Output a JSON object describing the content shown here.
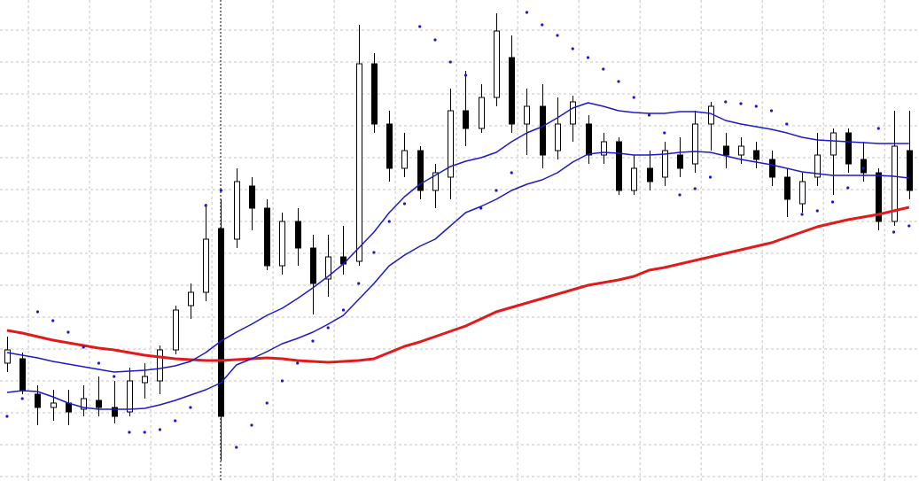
{
  "chart_data": {
    "type": "candlestick",
    "xlim": [
      -0.46,
      59.65
    ],
    "xticks": [
      1.4,
      5.4,
      9.4,
      13.4,
      17.4,
      21.4,
      25.4,
      29.4,
      33.4,
      37.4,
      41.4,
      45.4,
      49.4,
      53.4,
      57.4
    ],
    "ylim": [
      0,
      543
    ],
    "yticks": [
      5,
      41,
      77,
      113,
      149,
      185,
      221,
      257,
      293,
      329,
      365,
      401,
      437,
      473,
      509
    ],
    "grid": true,
    "grid_color": "#c4c4c4",
    "up_color": "#ffffff",
    "down_color": "#000000",
    "candles": {
      "open": [
        133,
        138,
        98,
        83,
        88,
        81,
        91,
        83,
        78,
        111,
        113,
        148,
        198,
        213,
        285,
        273,
        333,
        308,
        243,
        293,
        263,
        228,
        253,
        248,
        471,
        403,
        353,
        373,
        328,
        343,
        418,
        398,
        433,
        478,
        403,
        423,
        373,
        403,
        403,
        368,
        383,
        328,
        353,
        343,
        368,
        358,
        403,
        378,
        368,
        373,
        363,
        343,
        313,
        343,
        368,
        393,
        363,
        348,
        293,
        373
      ],
      "high": [
        163,
        145,
        108,
        103,
        103,
        108,
        118,
        113,
        128,
        133,
        153,
        198,
        223,
        313,
        318,
        353,
        343,
        318,
        303,
        308,
        278,
        278,
        288,
        515,
        483,
        418,
        393,
        378,
        358,
        443,
        463,
        448,
        528,
        503,
        443,
        448,
        433,
        435,
        413,
        393,
        388,
        368,
        373,
        383,
        388,
        418,
        428,
        393,
        388,
        383,
        373,
        353,
        348,
        393,
        398,
        398,
        383,
        353,
        418,
        418
      ],
      "low": [
        123,
        98,
        63,
        68,
        63,
        73,
        73,
        65,
        73,
        93,
        98,
        143,
        183,
        203,
        23,
        263,
        283,
        238,
        233,
        243,
        188,
        208,
        233,
        243,
        393,
        338,
        343,
        318,
        308,
        318,
        378,
        393,
        423,
        393,
        368,
        353,
        363,
        383,
        358,
        358,
        323,
        323,
        328,
        333,
        343,
        348,
        373,
        353,
        358,
        353,
        333,
        298,
        303,
        333,
        323,
        348,
        338,
        283,
        288,
        318
      ],
      "close": [
        148,
        103,
        83,
        88,
        78,
        93,
        83,
        73,
        113,
        118,
        148,
        193,
        213,
        273,
        73,
        338,
        308,
        243,
        293,
        263,
        223,
        253,
        245,
        471,
        403,
        353,
        373,
        328,
        348,
        418,
        398,
        433,
        508,
        403,
        423,
        368,
        403,
        428,
        368,
        383,
        328,
        353,
        338,
        373,
        353,
        403,
        423,
        368,
        378,
        363,
        343,
        318,
        338,
        368,
        393,
        358,
        348,
        293,
        378,
        328
      ]
    },
    "lines": [
      {
        "color": "#e31a1a",
        "values": [
          170,
          167,
          163,
          159,
          156,
          153,
          150,
          148,
          145,
          142,
          140,
          138,
          137,
          136,
          136,
          137,
          138,
          139,
          138,
          136,
          135,
          134,
          135,
          136,
          138,
          145,
          152,
          157,
          163,
          169,
          175,
          183,
          191,
          196,
          201,
          206,
          211,
          216,
          221,
          224,
          227,
          231,
          238,
          241,
          245,
          249,
          253,
          257,
          261,
          265,
          269,
          275,
          281,
          287,
          291,
          295,
          298,
          301,
          305,
          309
        ]
      },
      {
        "color": "#1a1acc",
        "values": [
          145,
          142,
          139,
          135,
          132,
          129,
          126,
          123,
          124,
          125,
          127,
          130,
          135,
          145,
          158,
          168,
          177,
          187,
          195,
          206,
          218,
          231,
          245,
          263,
          281,
          303,
          321,
          335,
          345,
          355,
          361,
          365,
          371,
          383,
          393,
          400,
          410,
          421,
          427,
          423,
          418,
          416,
          415,
          415,
          417,
          417,
          415,
          407,
          403,
          400,
          397,
          393,
          388,
          385,
          384,
          383,
          382,
          381,
          381,
          381
        ]
      },
      {
        "color": "#1a1acc",
        "values": [
          100,
          102,
          101,
          95,
          88,
          83,
          81,
          81,
          81,
          82,
          86,
          91,
          97,
          103,
          111,
          131,
          138,
          146,
          155,
          161,
          168,
          177,
          187,
          205,
          223,
          243,
          255,
          265,
          273,
          288,
          303,
          310,
          318,
          328,
          335,
          340,
          348,
          360,
          369,
          371,
          370,
          368,
          368,
          369,
          371,
          372,
          371,
          367,
          363,
          360,
          357,
          353,
          349,
          347,
          345,
          345,
          345,
          345,
          344,
          342
        ]
      }
    ],
    "sar": {
      "color": "#1a1acc",
      "values": [
        73,
        93,
        191,
        181,
        168,
        151,
        133,
        118,
        55,
        55,
        58,
        68,
        83,
        311,
        328,
        38,
        63,
        88,
        113,
        133,
        158,
        173,
        193,
        223,
        258,
        293,
        313,
        513,
        498,
        473,
        458,
        308,
        328,
        348,
        529,
        515,
        503,
        488,
        478,
        465,
        451,
        433,
        413,
        393,
        323,
        330,
        343,
        428,
        426,
        423,
        418,
        403,
        301,
        305,
        315,
        331,
        353,
        398,
        281,
        288
      ]
    }
  }
}
